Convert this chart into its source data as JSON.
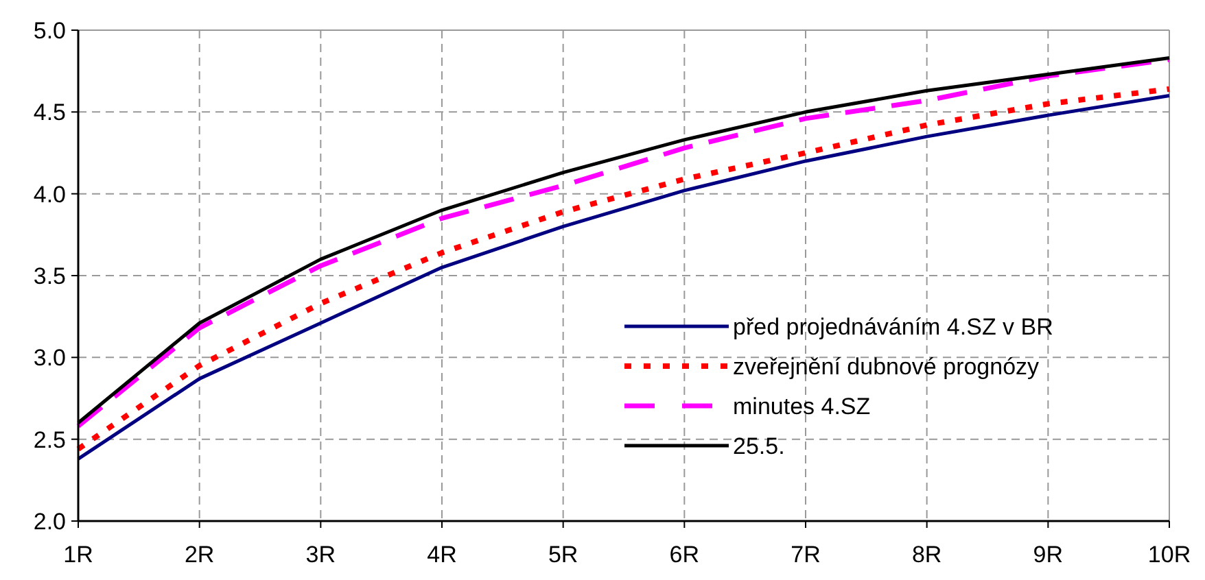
{
  "chart_data": {
    "type": "line",
    "categories": [
      "1R",
      "2R",
      "3R",
      "4R",
      "5R",
      "6R",
      "7R",
      "8R",
      "9R",
      "10R"
    ],
    "ylim": [
      2.0,
      5.0
    ],
    "yticks": [
      {
        "value": 2,
        "label": "2.0"
      },
      {
        "value": 2.5,
        "label": "2.5"
      },
      {
        "value": 3,
        "label": "3.0"
      },
      {
        "value": 3.5,
        "label": "3.5"
      },
      {
        "value": 4,
        "label": "4.0"
      },
      {
        "value": 4.5,
        "label": "4.5"
      },
      {
        "value": 5,
        "label": "5.0"
      }
    ],
    "grid": true,
    "legend": "bottom right",
    "marker": "none",
    "series": [
      {
        "name": "před projednáváním 4.SZ v BR",
        "color": "#000080",
        "line_style": "solid",
        "values": [
          2.38,
          2.87,
          3.21,
          3.55,
          3.8,
          4.02,
          4.2,
          4.35,
          4.48,
          4.6
        ]
      },
      {
        "name": "zveřejnění dubnové prognózy",
        "color": "#ff0000",
        "line_style": "dotted",
        "values": [
          2.44,
          2.95,
          3.33,
          3.64,
          3.89,
          4.09,
          4.25,
          4.42,
          4.55,
          4.64
        ]
      },
      {
        "name": "minutes 4.SZ",
        "color": "#ff00ff",
        "line_style": "dashed",
        "values": [
          2.58,
          3.18,
          3.56,
          3.85,
          4.05,
          4.28,
          4.46,
          4.57,
          4.72,
          4.82
        ]
      },
      {
        "name": "25.5.",
        "color": "#000000",
        "line_style": "solid",
        "values": [
          2.6,
          3.21,
          3.6,
          3.9,
          4.13,
          4.33,
          4.5,
          4.63,
          4.73,
          4.83
        ]
      }
    ]
  }
}
